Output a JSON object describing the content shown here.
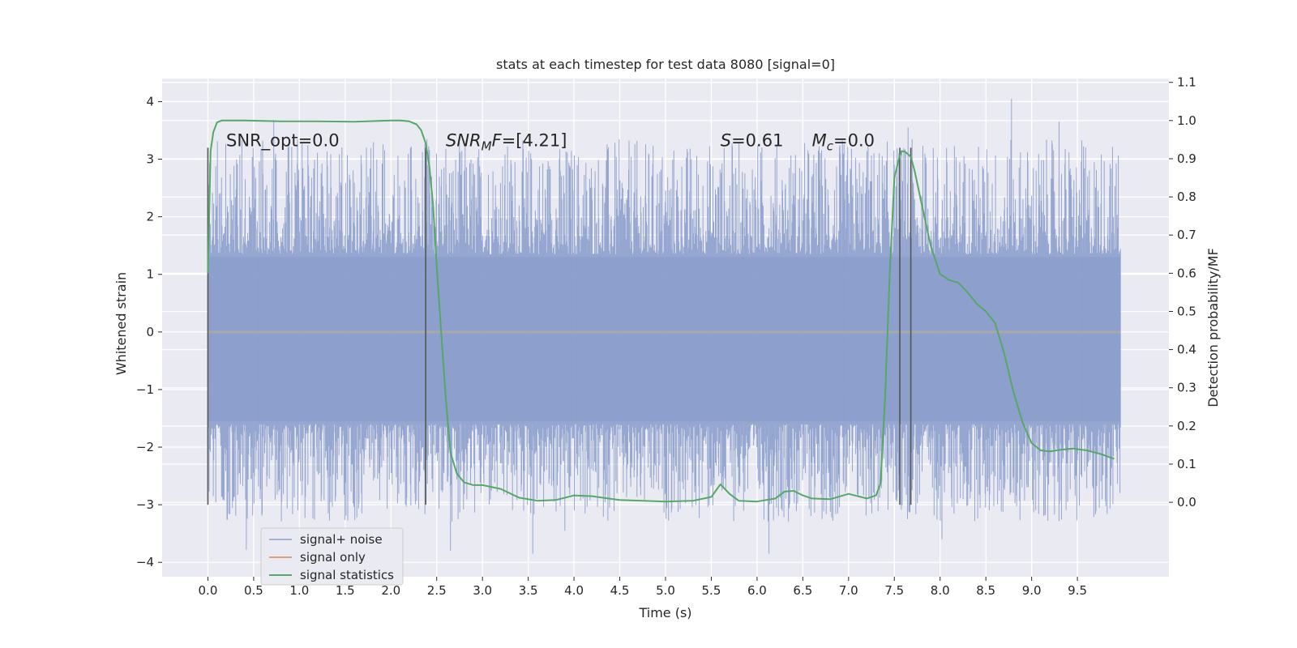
{
  "chart_data": {
    "type": "line",
    "title": "stats at each timestep for test data 8080 [signal=0]",
    "xlabel": "Time (s)",
    "ylabel": "Whitened strain",
    "y2label": "Detection probability/MF",
    "xlim": [
      -0.5,
      10.5
    ],
    "ylim": [
      -4.25,
      4.4
    ],
    "y2lim": [
      -0.195,
      1.11
    ],
    "xticks": [
      0.0,
      0.5,
      1.0,
      1.5,
      2.0,
      2.5,
      3.0,
      3.5,
      4.0,
      4.5,
      5.0,
      5.5,
      6.0,
      6.5,
      7.0,
      7.5,
      8.0,
      8.5,
      9.0,
      9.5
    ],
    "xtick_labels": [
      "0.0",
      "0.5",
      "1.0",
      "1.5",
      "2.0",
      "2.5",
      "3.0",
      "3.5",
      "4.0",
      "4.5",
      "5.0",
      "5.5",
      "6.0",
      "6.5",
      "7.0",
      "7.5",
      "8.0",
      "8.5",
      "9.0",
      "9.5"
    ],
    "yticks": [
      -4,
      -3,
      -2,
      -1,
      0,
      1,
      2,
      3,
      4
    ],
    "ytick_labels": [
      "−4",
      "−3",
      "−2",
      "−1",
      "0",
      "1",
      "2",
      "3",
      "4"
    ],
    "y2ticks": [
      0.0,
      0.1,
      0.2,
      0.3,
      0.4,
      0.5,
      0.6,
      0.7,
      0.8,
      0.9,
      1.0,
      1.1
    ],
    "y2tick_labels": [
      "0.0",
      "0.1",
      "0.2",
      "0.3",
      "0.4",
      "0.5",
      "0.6",
      "0.7",
      "0.8",
      "0.9",
      "1.0",
      "1.1"
    ],
    "grid": true,
    "legend_placement": "lower-left",
    "legend": [
      "signal+ noise",
      "signal only",
      "signal statistics"
    ],
    "colors": {
      "noise": "#8c9fcc",
      "signal": "#dd8452",
      "stats": "#55a868",
      "vlines": "#555555",
      "background": "#eaeaf2",
      "grid": "#ffffff"
    },
    "noise_series": {
      "name": "signal+ noise",
      "x_range": [
        0.0,
        9.97
      ],
      "band": [
        -1.6,
        1.35
      ],
      "min": -3.85,
      "max": 4.05,
      "note_peaks": [
        {
          "x": 0.72,
          "y": 3.68
        },
        {
          "x": 0.42,
          "y": -3.78
        },
        {
          "x": 2.6,
          "y": 3.18
        },
        {
          "x": 2.65,
          "y": -3.8
        },
        {
          "x": 3.55,
          "y": -3.85
        },
        {
          "x": 6.13,
          "y": -3.85
        },
        {
          "x": 8.78,
          "y": 4.05
        },
        {
          "x": 9.02,
          "y": -3.0
        },
        {
          "x": 7.65,
          "y": 3.55
        },
        {
          "x": 8.02,
          "y": -3.6
        },
        {
          "x": 9.3,
          "y": 3.65
        },
        {
          "x": 3.9,
          "y": -3.45
        }
      ]
    },
    "signal_series": {
      "name": "signal only",
      "x": [
        0.0,
        9.97
      ],
      "y": [
        0.0,
        0.0
      ]
    },
    "stats_series": {
      "name": "signal statistics",
      "x": [
        0.0,
        0.03,
        0.06,
        0.1,
        0.15,
        0.2,
        0.4,
        0.8,
        1.2,
        1.6,
        2.0,
        2.1,
        2.2,
        2.28,
        2.33,
        2.38,
        2.42,
        2.46,
        2.5,
        2.55,
        2.6,
        2.65,
        2.72,
        2.8,
        2.9,
        3.0,
        3.2,
        3.4,
        3.6,
        3.8,
        4.0,
        4.2,
        4.5,
        5.0,
        5.3,
        5.5,
        5.6,
        5.7,
        5.8,
        6.0,
        6.2,
        6.3,
        6.4,
        6.5,
        6.6,
        6.8,
        7.0,
        7.2,
        7.3,
        7.35,
        7.4,
        7.45,
        7.5,
        7.55,
        7.58,
        7.62,
        7.68,
        7.72,
        7.8,
        7.9,
        8.0,
        8.1,
        8.2,
        8.3,
        8.4,
        8.5,
        8.6,
        8.7,
        8.8,
        8.9,
        9.0,
        9.1,
        9.2,
        9.3,
        9.45,
        9.6,
        9.75,
        9.9
      ],
      "y": [
        0.6,
        0.92,
        0.97,
        0.995,
        1.0,
        1.0,
        1.0,
        0.998,
        0.998,
        0.997,
        1.0,
        1.0,
        0.998,
        0.99,
        0.975,
        0.94,
        0.88,
        0.78,
        0.62,
        0.44,
        0.27,
        0.13,
        0.075,
        0.052,
        0.045,
        0.045,
        0.035,
        0.012,
        0.004,
        0.006,
        0.018,
        0.016,
        0.006,
        0.002,
        0.004,
        0.014,
        0.047,
        0.022,
        0.004,
        0.002,
        0.01,
        0.028,
        0.03,
        0.018,
        0.01,
        0.008,
        0.022,
        0.01,
        0.018,
        0.05,
        0.28,
        0.6,
        0.85,
        0.9,
        0.92,
        0.918,
        0.905,
        0.87,
        0.78,
        0.67,
        0.598,
        0.582,
        0.575,
        0.55,
        0.52,
        0.5,
        0.47,
        0.39,
        0.29,
        0.21,
        0.155,
        0.136,
        0.133,
        0.137,
        0.141,
        0.136,
        0.127,
        0.114
      ]
    },
    "vlines": [
      0.0,
      2.38,
      7.56,
      7.68
    ],
    "vline_range": [
      -3.0,
      3.2
    ],
    "annotations": [
      {
        "id": "snr-opt",
        "parts": [
          {
            "t": "SNR_opt=0.0",
            "italic": false
          }
        ],
        "x": 0.2,
        "y": 3.2
      },
      {
        "id": "snr-mf",
        "parts": [
          {
            "t": "SNR",
            "italic": true
          },
          {
            "t": "M",
            "italic": true,
            "sub": true
          },
          {
            "t": "F",
            "italic": true
          },
          {
            "t": "=[4.21]",
            "italic": false
          }
        ],
        "x": 2.6,
        "y": 3.2
      },
      {
        "id": "s-stat",
        "parts": [
          {
            "t": "S",
            "italic": true
          },
          {
            "t": "=0.61",
            "italic": false
          }
        ],
        "x": 5.6,
        "y": 3.2
      },
      {
        "id": "mc",
        "parts": [
          {
            "t": "M",
            "italic": true
          },
          {
            "t": "c",
            "italic": true,
            "sub": true
          },
          {
            "t": "=0.0",
            "italic": false
          }
        ],
        "x": 6.6,
        "y": 3.2
      }
    ]
  }
}
